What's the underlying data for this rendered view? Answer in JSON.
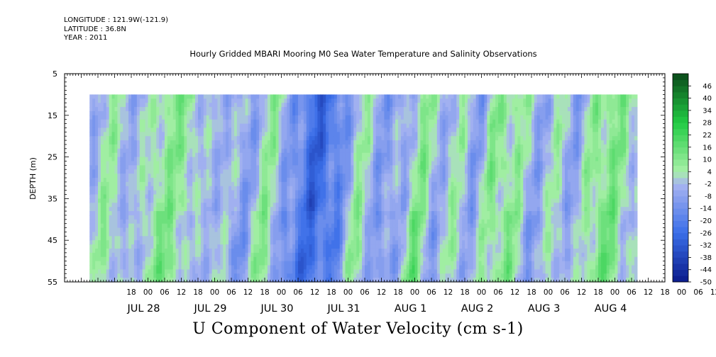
{
  "header": {
    "longitude": "LONGITUDE : 121.9W(-121.9)",
    "latitude": "LATITUDE : 36.8N",
    "year": "YEAR : 2011"
  },
  "chart_data": {
    "type": "heatmap",
    "title": "Hourly Gridded MBARI Mooring M0 Sea Water Temperature and Salinity Observations",
    "caption": "U Component of Water Velocity (cm s-1)",
    "ylabel": "DEPTH (m)",
    "y_ticks": [
      "5",
      "15",
      "25",
      "35",
      "45",
      "55"
    ],
    "ylim": [
      5,
      55
    ],
    "y_inverted": true,
    "x_range_hours": [
      -30,
      186
    ],
    "x_start_label": "JUL 28 00",
    "hour_tick_labels": [
      "18",
      "00",
      "06",
      "12",
      "18",
      "00",
      "06",
      "12",
      "18",
      "00",
      "06",
      "12",
      "18",
      "00",
      "06",
      "12",
      "18",
      "00",
      "06",
      "12",
      "18",
      "00",
      "06",
      "12",
      "18",
      "00",
      "06",
      "12",
      "18",
      "00",
      "06",
      "12",
      "18",
      "00",
      "06",
      "12"
    ],
    "day_labels": [
      "JUL 28",
      "JUL 29",
      "JUL 30",
      "JUL 31",
      "AUG  1",
      "AUG  2",
      "AUG  3",
      "AUG  4"
    ],
    "data_depth_range": [
      10,
      55
    ],
    "data_time_range_hours": [
      -21,
      176
    ],
    "colorbar_ticks": [
      "46",
      "40",
      "34",
      "28",
      "22",
      "16",
      "10",
      "4",
      "-2",
      "-8",
      "-14",
      "-20",
      "-26",
      "-32",
      "-38",
      "-44",
      "-50"
    ],
    "colorbar_range": [
      -50,
      52
    ],
    "colorbar_step": 3,
    "colors": {
      "strong_negative": "#0a1a8a",
      "negative": "#3a6ee8",
      "weak_negative": "#a8b4f0",
      "weak_positive": "#a8f0a8",
      "positive": "#22cc44",
      "strong_positive": "#0a4a1a"
    },
    "velocity_field_anchors": {
      "description_by_hour": [
        [
          -21,
          -6
        ],
        [
          -12,
          4
        ],
        [
          -3,
          -4
        ],
        [
          6,
          6
        ],
        [
          14,
          9
        ],
        [
          22,
          -4
        ],
        [
          30,
          -2
        ],
        [
          38,
          -8
        ],
        [
          46,
          6
        ],
        [
          54,
          -12
        ],
        [
          62,
          -28
        ],
        [
          70,
          -18
        ],
        [
          78,
          4
        ],
        [
          86,
          -8
        ],
        [
          94,
          -6
        ],
        [
          100,
          10
        ],
        [
          106,
          -4
        ],
        [
          114,
          2
        ],
        [
          120,
          -8
        ],
        [
          126,
          8
        ],
        [
          134,
          6
        ],
        [
          142,
          -6
        ],
        [
          150,
          2
        ],
        [
          156,
          -8
        ],
        [
          162,
          8
        ],
        [
          170,
          10
        ],
        [
          176,
          2
        ]
      ]
    }
  }
}
